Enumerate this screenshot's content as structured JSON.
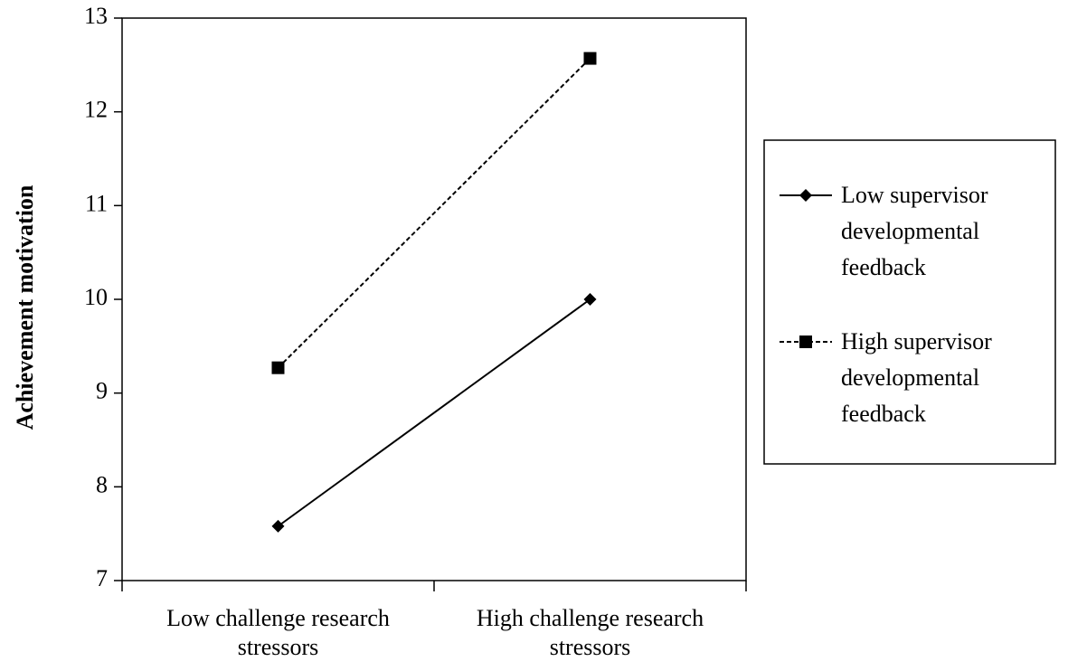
{
  "chart_data": {
    "type": "line",
    "y_label": "Achievement  motivation",
    "categories": [
      "Low challenge research stressors",
      "High challenge research stressors"
    ],
    "series": [
      {
        "name": "Low supervisor developmental feedback",
        "color": "#000000",
        "dashed": false,
        "marker": "diamond",
        "values": [
          7.58,
          10.0
        ]
      },
      {
        "name": "High supervisor developmental feedback",
        "color": "#000000",
        "dashed": true,
        "marker": "square",
        "values": [
          9.27,
          12.57
        ]
      }
    ],
    "ylim": [
      7,
      13
    ],
    "yticks": [
      7,
      8,
      9,
      10,
      11,
      12,
      13
    ],
    "grid": false
  }
}
